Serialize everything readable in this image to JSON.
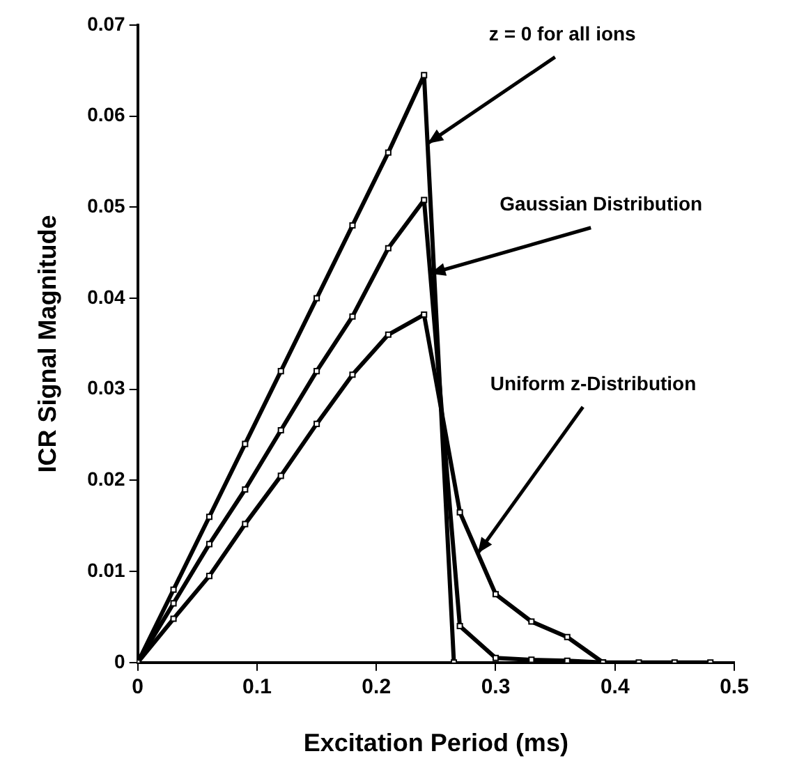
{
  "chart_data": {
    "type": "line",
    "xlabel": "Excitation Period (ms)",
    "ylabel": "ICR Signal Magnitude",
    "xlim": [
      0,
      0.5
    ],
    "xticks": [
      0,
      0.1,
      0.2,
      0.3,
      0.4,
      0.5
    ],
    "ylim": [
      0,
      0.07
    ],
    "yticks": [
      0,
      0.01,
      0.02,
      0.03,
      0.04,
      0.05,
      0.06,
      0.07
    ],
    "grid": false,
    "legend": false,
    "marker": "square",
    "line_style": "solid",
    "series": [
      {
        "color": "#000000",
        "x": [
          0,
          0.03,
          0.06,
          0.09,
          0.12,
          0.15,
          0.18,
          0.21,
          0.24,
          0.265
        ],
        "values": [
          0,
          0.008,
          0.016,
          0.024,
          0.032,
          0.04,
          0.048,
          0.056,
          0.0645,
          0
        ]
      },
      {
        "color": "#000000",
        "x": [
          0,
          0.03,
          0.06,
          0.09,
          0.12,
          0.15,
          0.18,
          0.21,
          0.24,
          0.27,
          0.3,
          0.33,
          0.36,
          0.39
        ],
        "values": [
          0,
          0.0065,
          0.013,
          0.019,
          0.0255,
          0.032,
          0.038,
          0.0455,
          0.0508,
          0.004,
          0.0005,
          0.0003,
          0.0002,
          0
        ]
      },
      {
        "color": "#000000",
        "x": [
          0,
          0.03,
          0.06,
          0.09,
          0.12,
          0.15,
          0.18,
          0.21,
          0.24,
          0.27,
          0.3,
          0.33,
          0.36,
          0.39,
          0.42,
          0.45,
          0.48
        ],
        "values": [
          0,
          0.0048,
          0.0095,
          0.0152,
          0.0205,
          0.0262,
          0.0316,
          0.036,
          0.0382,
          0.0165,
          0.0075,
          0.0045,
          0.0028,
          0,
          0,
          0,
          0
        ]
      }
    ],
    "annotations": [
      {
        "text": "z = 0 for all ions",
        "x": 0.243,
        "y": 0.057
      },
      {
        "text": "Gaussian Distribution",
        "x": 0.245,
        "y": 0.0427
      },
      {
        "text": "Uniform z-Distribution",
        "x": 0.285,
        "y": 0.012
      }
    ]
  }
}
